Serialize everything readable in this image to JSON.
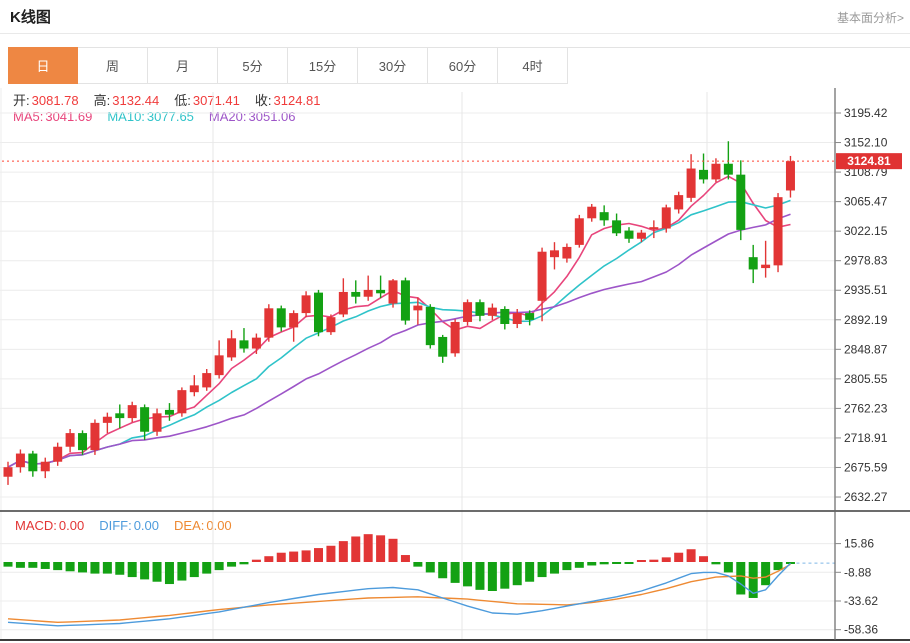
{
  "header": {
    "title": "K线图",
    "link_label": "基本面分析>"
  },
  "tabs": {
    "items": [
      "日",
      "周",
      "月",
      "5分",
      "15分",
      "30分",
      "60分",
      "4时"
    ],
    "active_index": 0
  },
  "legend": {
    "ohlc": [
      {
        "key": "open",
        "label": "开:",
        "value": "3081.78"
      },
      {
        "key": "high",
        "label": "高:",
        "value": "3132.44"
      },
      {
        "key": "low",
        "label": "低:",
        "value": "3071.41"
      },
      {
        "key": "close",
        "label": "收:",
        "value": "3124.81"
      }
    ],
    "ma": [
      {
        "key": "ma5",
        "label": "MA5:",
        "value": "3041.69",
        "color": "#e8457c"
      },
      {
        "key": "ma10",
        "label": "MA10:",
        "value": "3077.65",
        "color": "#2fc3c9"
      },
      {
        "key": "ma20",
        "label": "MA20:",
        "value": "3051.06",
        "color": "#9d55c8"
      }
    ],
    "macd": [
      {
        "key": "macd",
        "label": "MACD:",
        "value": "0.00",
        "color": "#e23535"
      },
      {
        "key": "diff",
        "label": "DIFF:",
        "value": "0.00",
        "color": "#4d9bdc"
      },
      {
        "key": "dea",
        "label": "DEA:",
        "value": "0.00",
        "color": "#ee8a33"
      }
    ]
  },
  "colors": {
    "up": "#e23535",
    "down": "#13a113",
    "tab_active": "#ee8743",
    "grid": "#ececec",
    "vgrid": "#e7e7e7",
    "axis_line": "#666666",
    "panel_border": "#3c3c3c",
    "tick_text": "#333333",
    "ma5": "#e8457c",
    "ma10": "#2fc3c9",
    "ma20": "#9d55c8",
    "diff_line": "#4d9bdc",
    "dea_line": "#ee8a33",
    "price_line": "#ff4433",
    "price_label_bg": "#e03333",
    "price_label_text": "#ffffff",
    "end_dash_line": "#7fb8e8"
  },
  "chart_data": {
    "type": "candlestick",
    "title": "K线图",
    "legend_position": "top-left overlay",
    "grid": true,
    "price_axis_ticks": [
      "3195.42",
      "3152.10",
      "3108.79",
      "3065.47",
      "3022.15",
      "2978.83",
      "2935.51",
      "2892.19",
      "2848.87",
      "2805.55",
      "2762.23",
      "2718.91",
      "2675.59",
      "2632.27"
    ],
    "price_range": [
      2632.27,
      3195.42
    ],
    "current_price": 3124.81,
    "current_price_label": "3124.81",
    "last_candle_ohlc": {
      "open": 3081.78,
      "high": 3132.44,
      "low": 3071.41,
      "close": 3124.81
    },
    "ma_periods": [
      5,
      10,
      20
    ],
    "candles": [
      [
        2662,
        2684,
        2650,
        2676
      ],
      [
        2676,
        2702,
        2668,
        2696
      ],
      [
        2696,
        2700,
        2662,
        2670
      ],
      [
        2670,
        2690,
        2660,
        2684
      ],
      [
        2684,
        2712,
        2678,
        2706
      ],
      [
        2706,
        2732,
        2698,
        2726
      ],
      [
        2726,
        2730,
        2694,
        2701
      ],
      [
        2701,
        2746,
        2694,
        2741
      ],
      [
        2741,
        2756,
        2726,
        2750
      ],
      [
        2755,
        2768,
        2733,
        2748
      ],
      [
        2748,
        2772,
        2742,
        2767
      ],
      [
        2764,
        2768,
        2716,
        2728
      ],
      [
        2728,
        2762,
        2722,
        2755
      ],
      [
        2760,
        2770,
        2744,
        2753
      ],
      [
        2755,
        2793,
        2750,
        2789
      ],
      [
        2786,
        2811,
        2780,
        2796
      ],
      [
        2793,
        2820,
        2788,
        2814
      ],
      [
        2811,
        2862,
        2806,
        2840
      ],
      [
        2837,
        2877,
        2832,
        2865
      ],
      [
        2862,
        2880,
        2844,
        2850
      ],
      [
        2850,
        2872,
        2842,
        2866
      ],
      [
        2866,
        2915,
        2860,
        2909
      ],
      [
        2909,
        2913,
        2875,
        2881
      ],
      [
        2881,
        2906,
        2860,
        2902
      ],
      [
        2902,
        2934,
        2896,
        2928
      ],
      [
        2932,
        2936,
        2868,
        2874
      ],
      [
        2874,
        2900,
        2870,
        2896
      ],
      [
        2900,
        2953,
        2896,
        2933
      ],
      [
        2933,
        2950,
        2916,
        2926
      ],
      [
        2926,
        2957,
        2920,
        2936
      ],
      [
        2936,
        2957,
        2924,
        2931
      ],
      [
        2916,
        2952,
        2910,
        2950
      ],
      [
        2950,
        2954,
        2885,
        2891
      ],
      [
        2906,
        2925,
        2885,
        2913
      ],
      [
        2911,
        2915,
        2850,
        2855
      ],
      [
        2867,
        2870,
        2829,
        2838
      ],
      [
        2843,
        2893,
        2838,
        2889
      ],
      [
        2889,
        2922,
        2884,
        2918
      ],
      [
        2918,
        2922,
        2890,
        2898
      ],
      [
        2898,
        2916,
        2892,
        2910
      ],
      [
        2908,
        2912,
        2878,
        2886
      ],
      [
        2886,
        2908,
        2880,
        2902
      ],
      [
        2902,
        2906,
        2884,
        2892
      ],
      [
        2920,
        2998,
        2890,
        2992
      ],
      [
        2984,
        3006,
        2966,
        2994
      ],
      [
        2982,
        3004,
        2976,
        2999
      ],
      [
        3002,
        3046,
        2998,
        3041
      ],
      [
        3041,
        3062,
        3036,
        3058
      ],
      [
        3050,
        3060,
        3030,
        3038
      ],
      [
        3038,
        3048,
        3015,
        3019
      ],
      [
        3023,
        3028,
        3005,
        3011
      ],
      [
        3011,
        3024,
        3006,
        3020
      ],
      [
        3025,
        3038,
        3012,
        3028
      ],
      [
        3026,
        3061,
        3020,
        3057
      ],
      [
        3054,
        3080,
        3048,
        3075
      ],
      [
        3071,
        3135,
        3065,
        3114
      ],
      [
        3112,
        3136,
        3092,
        3098
      ],
      [
        3098,
        3129,
        3094,
        3121
      ],
      [
        3121,
        3154,
        3098,
        3105
      ],
      [
        3105,
        3126,
        3009,
        3024
      ],
      [
        2984,
        3002,
        2946,
        2966
      ],
      [
        2968,
        3008,
        2954,
        2973
      ],
      [
        2972,
        3078,
        2962,
        3072
      ],
      [
        3081.78,
        3132.44,
        3071.41,
        3124.81
      ]
    ],
    "macd": {
      "axis_ticks": [
        "15.86",
        "-8.88",
        "-33.62",
        "-58.36"
      ],
      "histogram": [
        -4,
        -5,
        -5,
        -6,
        -7,
        -8,
        -9,
        -10,
        -10,
        -11,
        -13,
        -15,
        -17,
        -19,
        -16,
        -13,
        -10,
        -7,
        -4,
        -2,
        2,
        5,
        8,
        9,
        10,
        12,
        14,
        18,
        22,
        24,
        23,
        20,
        6,
        -4,
        -9,
        -14,
        -18,
        -21,
        -24,
        -25,
        -23,
        -20,
        -17,
        -13,
        -10,
        -7,
        -5,
        -3,
        -2,
        -1.5,
        -1,
        1,
        2,
        4,
        8,
        11,
        5,
        -2,
        -9,
        -28,
        -31,
        -20,
        -7,
        -0.5
      ],
      "diff_points": [
        [
          0,
          -52
        ],
        [
          4,
          -55
        ],
        [
          9,
          -53
        ],
        [
          13,
          -49
        ],
        [
          17,
          -43
        ],
        [
          21,
          -35
        ],
        [
          25,
          -28
        ],
        [
          29,
          -23
        ],
        [
          31,
          -22
        ],
        [
          33,
          -24
        ],
        [
          35,
          -31
        ],
        [
          37,
          -38
        ],
        [
          39,
          -44
        ],
        [
          41,
          -45
        ],
        [
          43,
          -42
        ],
        [
          45,
          -38
        ],
        [
          47,
          -34
        ],
        [
          49,
          -30
        ],
        [
          51,
          -25
        ],
        [
          53,
          -18
        ],
        [
          55,
          -10
        ],
        [
          56,
          -9
        ],
        [
          57,
          -9
        ],
        [
          58,
          -12
        ],
        [
          59,
          -19
        ],
        [
          60,
          -27
        ],
        [
          61,
          -24
        ],
        [
          62,
          -12
        ],
        [
          63,
          -1
        ]
      ],
      "dea_points": [
        [
          0,
          -49
        ],
        [
          4,
          -52
        ],
        [
          9,
          -50
        ],
        [
          13,
          -46
        ],
        [
          17,
          -41
        ],
        [
          21,
          -37
        ],
        [
          25,
          -34
        ],
        [
          29,
          -31
        ],
        [
          33,
          -30
        ],
        [
          37,
          -32
        ],
        [
          41,
          -36
        ],
        [
          45,
          -37
        ],
        [
          47,
          -35
        ],
        [
          49,
          -32
        ],
        [
          51,
          -28
        ],
        [
          53,
          -23
        ],
        [
          55,
          -17
        ],
        [
          57,
          -13
        ],
        [
          59,
          -12
        ],
        [
          60,
          -14
        ],
        [
          61,
          -13
        ],
        [
          62,
          -8
        ],
        [
          63,
          -2
        ]
      ]
    }
  }
}
